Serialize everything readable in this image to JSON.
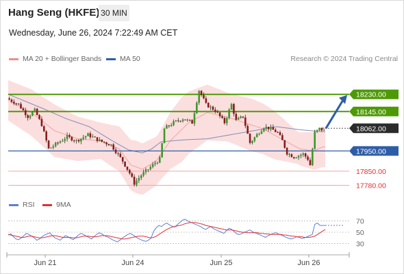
{
  "header": {
    "title": "Hang Seng (HKFE)",
    "timeframe": "30 MIN",
    "timestamp": "Wednesday, June 26, 2024 7:22:49 AM CET"
  },
  "legend": {
    "main": [
      {
        "label": "MA 20 + Bollinger Bands",
        "color": "#f08c8c"
      },
      {
        "label": "MA 50",
        "color": "#2e5da8"
      }
    ],
    "rsi": [
      {
        "label": "RSI",
        "color": "#5b7fd6"
      },
      {
        "label": "9MA",
        "color": "#e03030"
      }
    ],
    "credit": "Research © 2024 Trading Central"
  },
  "chart_data": [
    {
      "type": "candlestick",
      "title": "Hang Seng (HKFE)",
      "timeframe": "30 MIN",
      "x_tick_labels": [
        "Jun 21",
        "Jun 24",
        "Jun 25",
        "Jun 26"
      ],
      "price_range": [
        17760,
        18290
      ],
      "last_price": 18062,
      "levels": [
        {
          "value": 18230,
          "label": "18230.00",
          "kind": "resistance",
          "color": "#4e9a06"
        },
        {
          "value": 18145,
          "label": "18145.00",
          "kind": "resistance",
          "color": "#4e9a06"
        },
        {
          "value": 18062,
          "label": "18062.00",
          "kind": "last",
          "color": "#333333"
        },
        {
          "value": 17950,
          "label": "17950.00",
          "kind": "pivot",
          "color": "#2e5da8"
        },
        {
          "value": 17850,
          "label": "17850.00",
          "kind": "support",
          "color": "#e03030"
        },
        {
          "value": 17780,
          "label": "17780.00",
          "kind": "support",
          "color": "#e03030"
        }
      ],
      "forecast_arrow": {
        "from": 18062,
        "to": 18230,
        "direction": "up",
        "color": "#2e5da8"
      },
      "price_path": [
        [
          0,
          18210
        ],
        [
          5,
          18180
        ],
        [
          9,
          18120
        ],
        [
          12,
          18150
        ],
        [
          15,
          18080
        ],
        [
          18,
          17960
        ],
        [
          22,
          17990
        ],
        [
          26,
          18020
        ],
        [
          30,
          18000
        ],
        [
          35,
          18030
        ],
        [
          40,
          18000
        ],
        [
          45,
          17980
        ],
        [
          50,
          17900
        ],
        [
          53,
          17840
        ],
        [
          55,
          17790
        ],
        [
          58,
          17830
        ],
        [
          62,
          17870
        ],
        [
          66,
          17910
        ],
        [
          68,
          18060
        ],
        [
          72,
          18090
        ],
        [
          76,
          18110
        ],
        [
          80,
          18090
        ],
        [
          83,
          18250
        ],
        [
          86,
          18180
        ],
        [
          90,
          18150
        ],
        [
          94,
          18090
        ],
        [
          97,
          18180
        ],
        [
          99,
          18100
        ],
        [
          102,
          18120
        ],
        [
          105,
          17990
        ],
        [
          108,
          18030
        ],
        [
          111,
          18070
        ],
        [
          114,
          18060
        ],
        [
          117,
          18040
        ],
        [
          119,
          18000
        ],
        [
          121,
          17940
        ],
        [
          124,
          17920
        ],
        [
          128,
          17935
        ],
        [
          130,
          17910
        ],
        [
          131,
          17880
        ],
        [
          133,
          18040
        ],
        [
          135,
          18060
        ],
        [
          137,
          18050
        ]
      ],
      "n_bars": 137,
      "ma50_path": [
        [
          0,
          18230
        ],
        [
          15,
          18160
        ],
        [
          25,
          18110
        ],
        [
          35,
          18070
        ],
        [
          45,
          18000
        ],
        [
          52,
          17955
        ],
        [
          58,
          17940
        ],
        [
          62,
          17960
        ],
        [
          66,
          17995
        ],
        [
          76,
          18005
        ],
        [
          86,
          18010
        ],
        [
          96,
          18030
        ],
        [
          106,
          18050
        ],
        [
          116,
          18070
        ],
        [
          126,
          18055
        ],
        [
          136,
          18045
        ]
      ],
      "ma20_path": [
        [
          0,
          18200
        ],
        [
          10,
          18140
        ],
        [
          20,
          18050
        ],
        [
          30,
          18010
        ],
        [
          40,
          18000
        ],
        [
          48,
          17960
        ],
        [
          53,
          17880
        ],
        [
          58,
          17860
        ],
        [
          64,
          17900
        ],
        [
          70,
          18000
        ],
        [
          78,
          18090
        ],
        [
          86,
          18140
        ],
        [
          94,
          18120
        ],
        [
          102,
          18090
        ],
        [
          110,
          18060
        ],
        [
          118,
          18010
        ],
        [
          126,
          17960
        ],
        [
          132,
          17950
        ],
        [
          136,
          17970
        ]
      ],
      "bb_width_path": [
        [
          0,
          100
        ],
        [
          20,
          130
        ],
        [
          40,
          90
        ],
        [
          55,
          130
        ],
        [
          65,
          120
        ],
        [
          75,
          160
        ],
        [
          85,
          140
        ],
        [
          95,
          120
        ],
        [
          105,
          130
        ],
        [
          115,
          120
        ],
        [
          125,
          80
        ],
        [
          136,
          100
        ]
      ]
    },
    {
      "type": "line",
      "title": "RSI",
      "ylim": [
        15,
        85
      ],
      "y_ticks": [
        70,
        50,
        30
      ],
      "reference_lines": [
        70,
        50,
        30
      ],
      "series": [
        {
          "name": "RSI",
          "color": "#5b7fd6",
          "values": [
            45,
            47,
            42,
            38,
            37,
            40,
            44,
            48,
            46,
            43,
            40,
            36,
            38,
            42,
            45,
            47,
            49,
            44,
            40,
            38,
            36,
            40,
            44,
            42,
            39,
            37,
            41,
            45,
            48,
            46,
            43,
            41,
            38,
            42,
            46,
            49,
            47,
            44,
            42,
            40,
            37,
            35,
            33,
            36,
            40,
            43,
            46,
            48,
            45,
            42,
            39,
            37,
            35,
            34,
            36,
            40,
            52,
            58,
            62,
            60,
            64,
            66,
            63,
            61,
            59,
            63,
            67,
            71,
            73,
            70,
            68,
            66,
            64,
            62,
            60,
            57,
            55,
            58,
            60,
            56,
            54,
            52,
            50,
            48,
            53,
            57,
            55,
            51,
            47,
            46,
            48,
            50,
            52,
            54,
            51,
            49,
            47,
            45,
            43,
            41,
            44,
            46,
            48,
            49,
            47,
            45,
            43,
            41,
            39,
            38,
            40,
            42,
            41,
            39,
            40,
            42,
            44,
            46,
            64,
            66,
            62,
            62,
            62
          ]
        },
        {
          "name": "9MA",
          "color": "#e03030",
          "values": [
            46,
            45,
            44,
            43,
            42,
            41,
            41,
            42,
            43,
            43,
            42,
            41,
            40,
            40,
            41,
            42,
            43,
            44,
            44,
            43,
            42,
            41,
            41,
            41,
            41,
            40,
            40,
            41,
            42,
            43,
            43,
            43,
            42,
            42,
            42,
            43,
            44,
            44,
            44,
            43,
            42,
            41,
            40,
            39,
            38,
            38,
            39,
            40,
            41,
            42,
            43,
            43,
            43,
            42,
            41,
            40,
            41,
            43,
            46,
            49,
            52,
            55,
            57,
            59,
            60,
            61,
            62,
            63,
            65,
            66,
            67,
            67,
            67,
            66,
            65,
            64,
            62,
            61,
            60,
            59,
            58,
            57,
            56,
            55,
            54,
            54,
            54,
            53,
            52,
            51,
            50,
            50,
            49,
            49,
            49,
            49,
            49,
            48,
            48,
            47,
            47,
            46,
            46,
            46,
            46,
            46,
            45,
            45,
            44,
            43,
            43,
            42,
            42,
            42,
            41,
            41,
            41,
            42,
            43,
            46,
            49,
            52,
            55
          ]
        }
      ]
    }
  ]
}
